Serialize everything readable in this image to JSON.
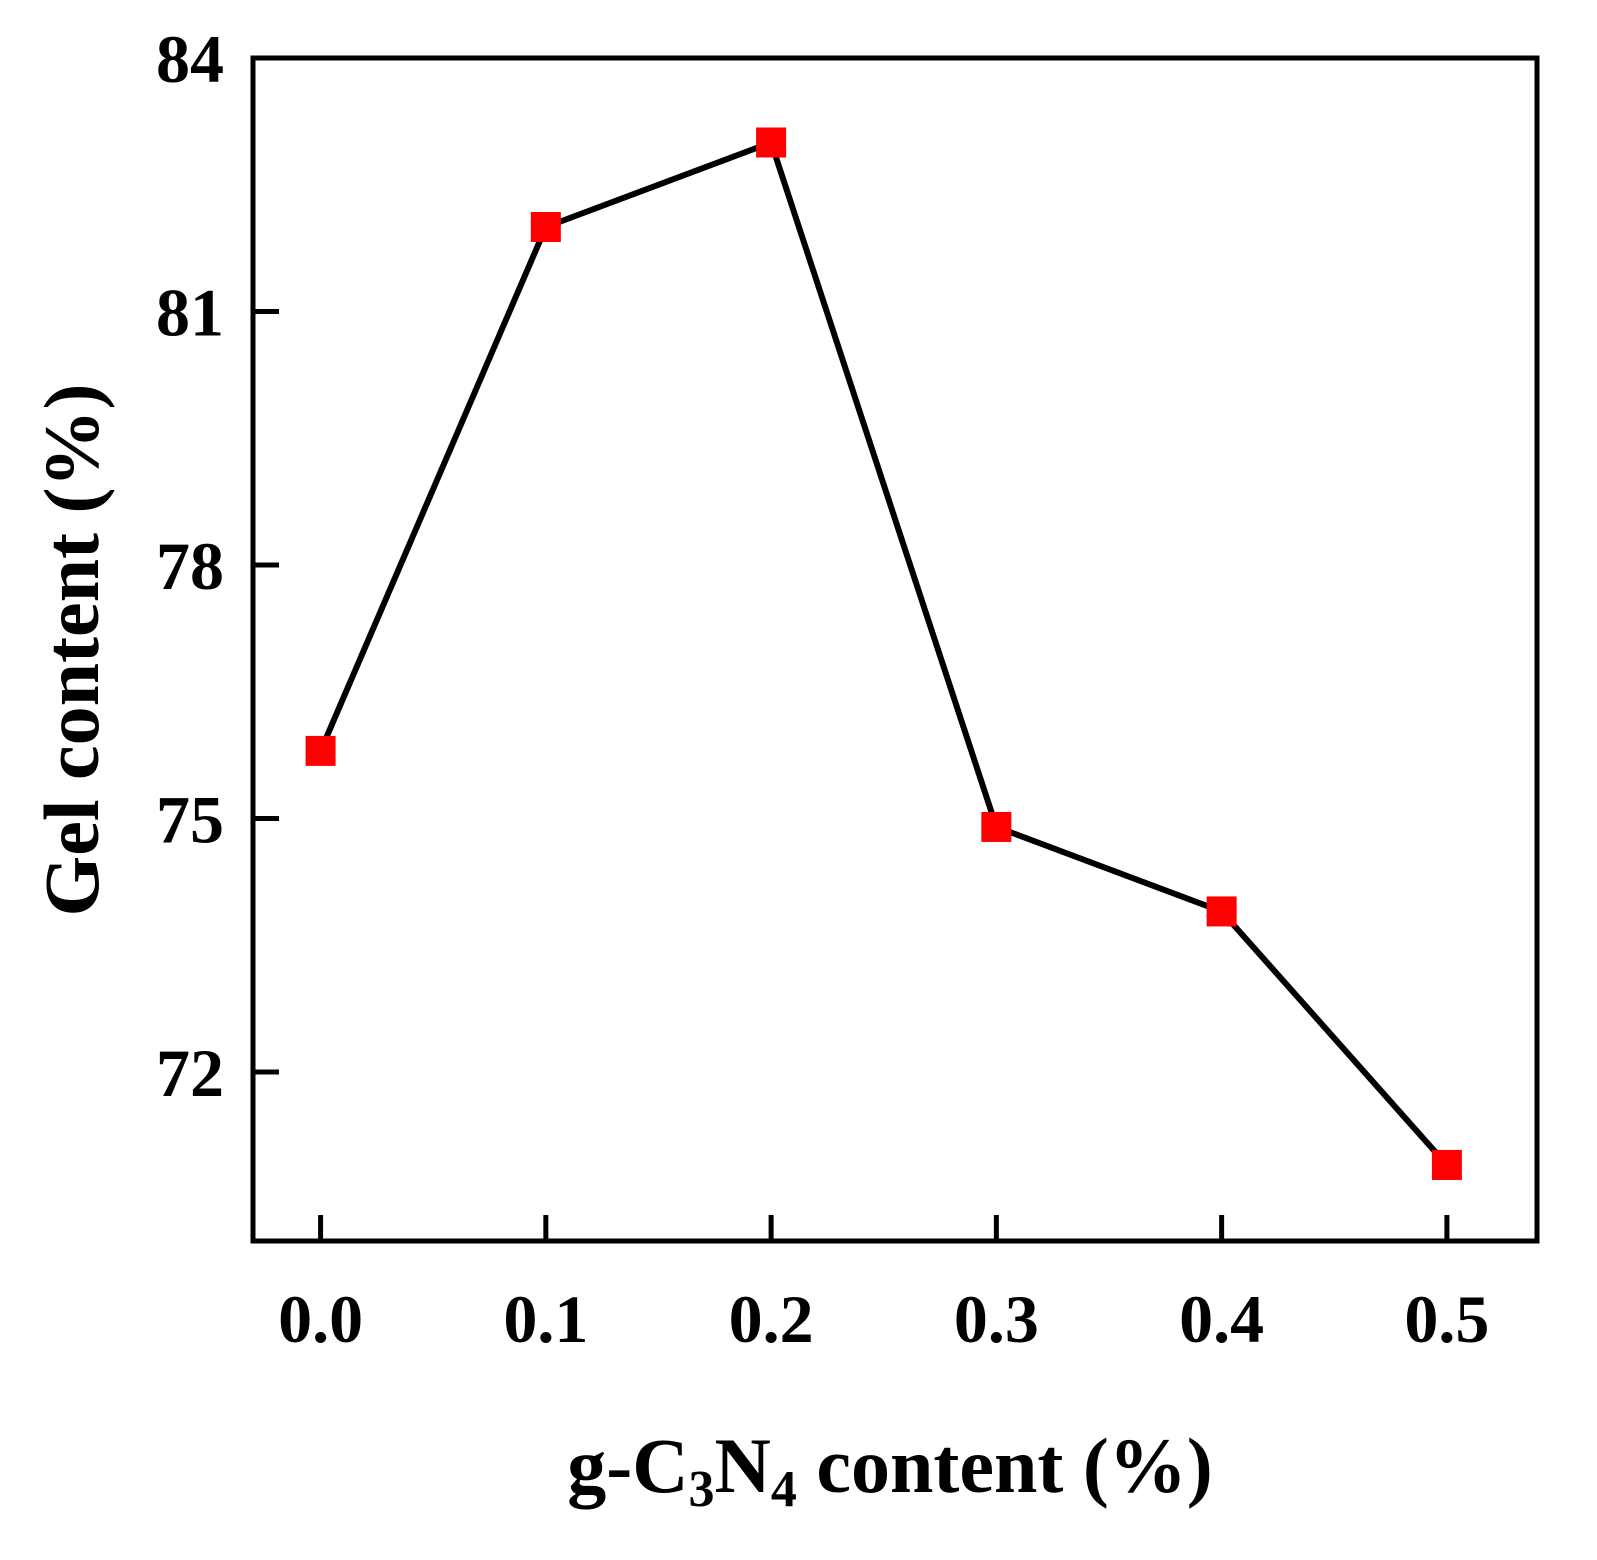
{
  "chart_data": {
    "type": "line",
    "title": "",
    "xlabel": {
      "prefix": "g-C",
      "sub1": "3",
      "mid": "N",
      "sub2": "4",
      "suffix": " content (%)"
    },
    "ylabel": "Gel content (%)",
    "xlim": [
      -0.03,
      0.54
    ],
    "ylim": [
      70.0,
      84.0
    ],
    "xticks": [
      0.0,
      0.1,
      0.2,
      0.3,
      0.4,
      0.5
    ],
    "xtick_labels": [
      "0.0",
      "0.1",
      "0.2",
      "0.3",
      "0.4",
      "0.5"
    ],
    "yticks": [
      72,
      75,
      78,
      81,
      84
    ],
    "ytick_labels": [
      "72",
      "75",
      "78",
      "81",
      "84"
    ],
    "grid": false,
    "legend": "none",
    "series": [
      {
        "x": [
          0.0,
          0.1,
          0.2,
          0.3,
          0.4,
          0.5
        ],
        "y": [
          75.8,
          82.0,
          83.0,
          74.9,
          73.9,
          70.9
        ],
        "line_color": "#000000",
        "marker": "square",
        "marker_color": "#ff0000"
      }
    ]
  }
}
